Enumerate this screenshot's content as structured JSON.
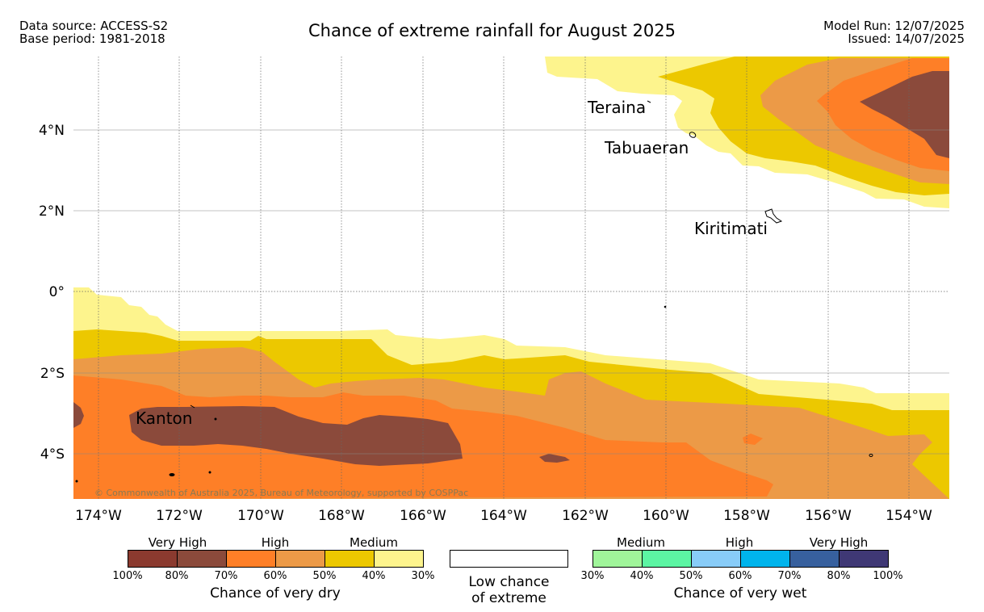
{
  "header": {
    "left_line1": "Data source: ACCESS-S2",
    "left_line2": "Base period: 1981-2018",
    "title": "Chance of extreme rainfall for August 2025",
    "right_line1": "Model Run: 12/07/2025",
    "right_line2": "Issued: 14/07/2025"
  },
  "map": {
    "lon_labels": [
      "174°W",
      "172°W",
      "170°W",
      "168°W",
      "166°W",
      "164°W",
      "162°W",
      "160°W",
      "158°W",
      "156°W",
      "154°W"
    ],
    "lat_labels": [
      "4°N",
      "2°N",
      "0°",
      "2°S",
      "4°S"
    ],
    "places": {
      "teraina": "Teraina",
      "tabuaeran": "Tabuaeran",
      "kiritimati": "Kiritimati",
      "kanton": "Kanton"
    },
    "copyright": "© Commonwealth of Australia 2025, Bureau of Meteorology, supported by COSPPac"
  },
  "colors": {
    "dry_100_80": "#8b4a3b",
    "dry_80_70": "#8b4a3b",
    "dry_70_60": "#fe7f27",
    "dry_60_50": "#ec9a47",
    "dry_50_40": "#ecc800",
    "dry_40_30": "#fdf48d",
    "wet_30_40": "#a0f59a",
    "wet_40_50": "#5cf5a3",
    "wet_50_60": "#88ccf8",
    "wet_60_70": "#00b4ec",
    "wet_70_80": "#37609e",
    "wet_80_100": "#3f3875"
  },
  "legend": {
    "dry": {
      "groups": [
        "Very High",
        "High",
        "Medium"
      ],
      "ticks": [
        "100%",
        "80%",
        "70%",
        "60%",
        "50%",
        "40%",
        "30%"
      ],
      "title": "Chance of very dry"
    },
    "low": {
      "line1": "Low chance",
      "line2": "of extreme"
    },
    "wet": {
      "groups": [
        "Medium",
        "High",
        "Very High"
      ],
      "ticks": [
        "30%",
        "40%",
        "50%",
        "60%",
        "70%",
        "80%",
        "100%"
      ],
      "title": "Chance of very wet"
    }
  }
}
